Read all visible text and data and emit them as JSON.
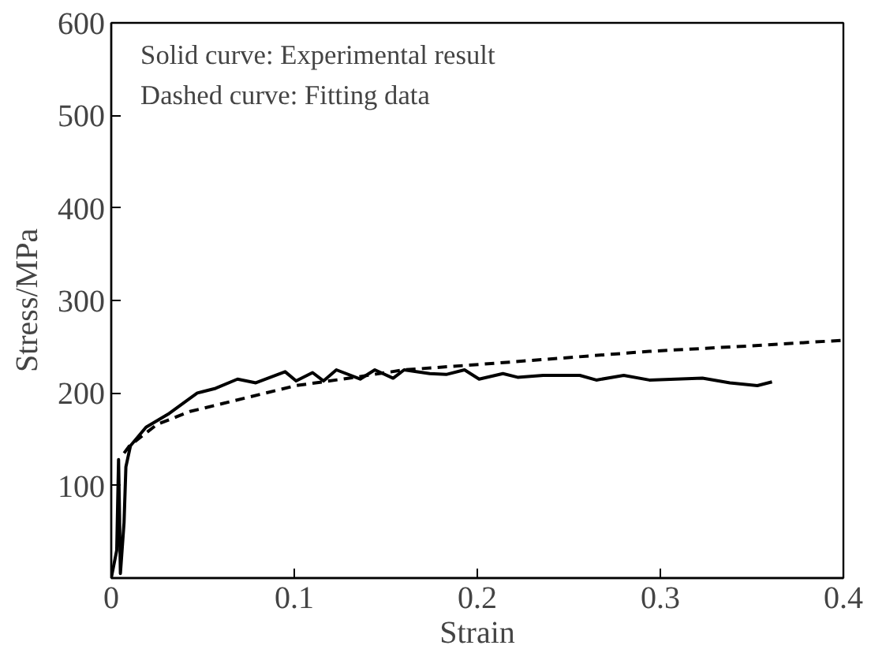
{
  "chart_data": {
    "type": "line",
    "xlabel": "Strain",
    "ylabel": "Stress/MPa",
    "xlim": [
      0,
      0.4
    ],
    "ylim": [
      0,
      600
    ],
    "xticks": [
      0,
      0.1,
      0.2,
      0.3,
      0.4
    ],
    "yticks": [
      100,
      200,
      300,
      400,
      500,
      600
    ],
    "grid": false,
    "marker": "none",
    "annotations": [
      "Solid curve: Experimental result",
      "Dashed curve: Fitting data"
    ],
    "series": [
      {
        "color": "#000000",
        "line_style": "solid",
        "x": [
          0,
          0.003,
          0.004,
          0.0045,
          0.005,
          0.007,
          0.008,
          0.0105,
          0.019,
          0.031,
          0.047,
          0.057,
          0.069,
          0.079,
          0.095,
          0.101,
          0.11,
          0.116,
          0.123,
          0.136,
          0.144,
          0.154,
          0.16,
          0.174,
          0.183,
          0.193,
          0.201,
          0.214,
          0.222,
          0.236,
          0.256,
          0.265,
          0.28,
          0.294,
          0.323,
          0.338,
          0.353,
          0.361
        ],
        "values": [
          0,
          30,
          128,
          70,
          5,
          60,
          120,
          143,
          163,
          177,
          200,
          205,
          215,
          211,
          223,
          213,
          222,
          213,
          225,
          215,
          225,
          216,
          225,
          221,
          220,
          225,
          215,
          221,
          217,
          219,
          219,
          214,
          219,
          214,
          216,
          211,
          208,
          212
        ]
      },
      {
        "color": "#000000",
        "line_style": "dashed",
        "x": [
          0.007,
          0.01,
          0.025,
          0.043,
          0.072,
          0.101,
          0.13,
          0.16,
          0.202,
          0.294,
          0.35,
          0.4
        ],
        "values": [
          135,
          143,
          166,
          180,
          194,
          208,
          216,
          225,
          231,
          245,
          251,
          257
        ]
      }
    ]
  }
}
